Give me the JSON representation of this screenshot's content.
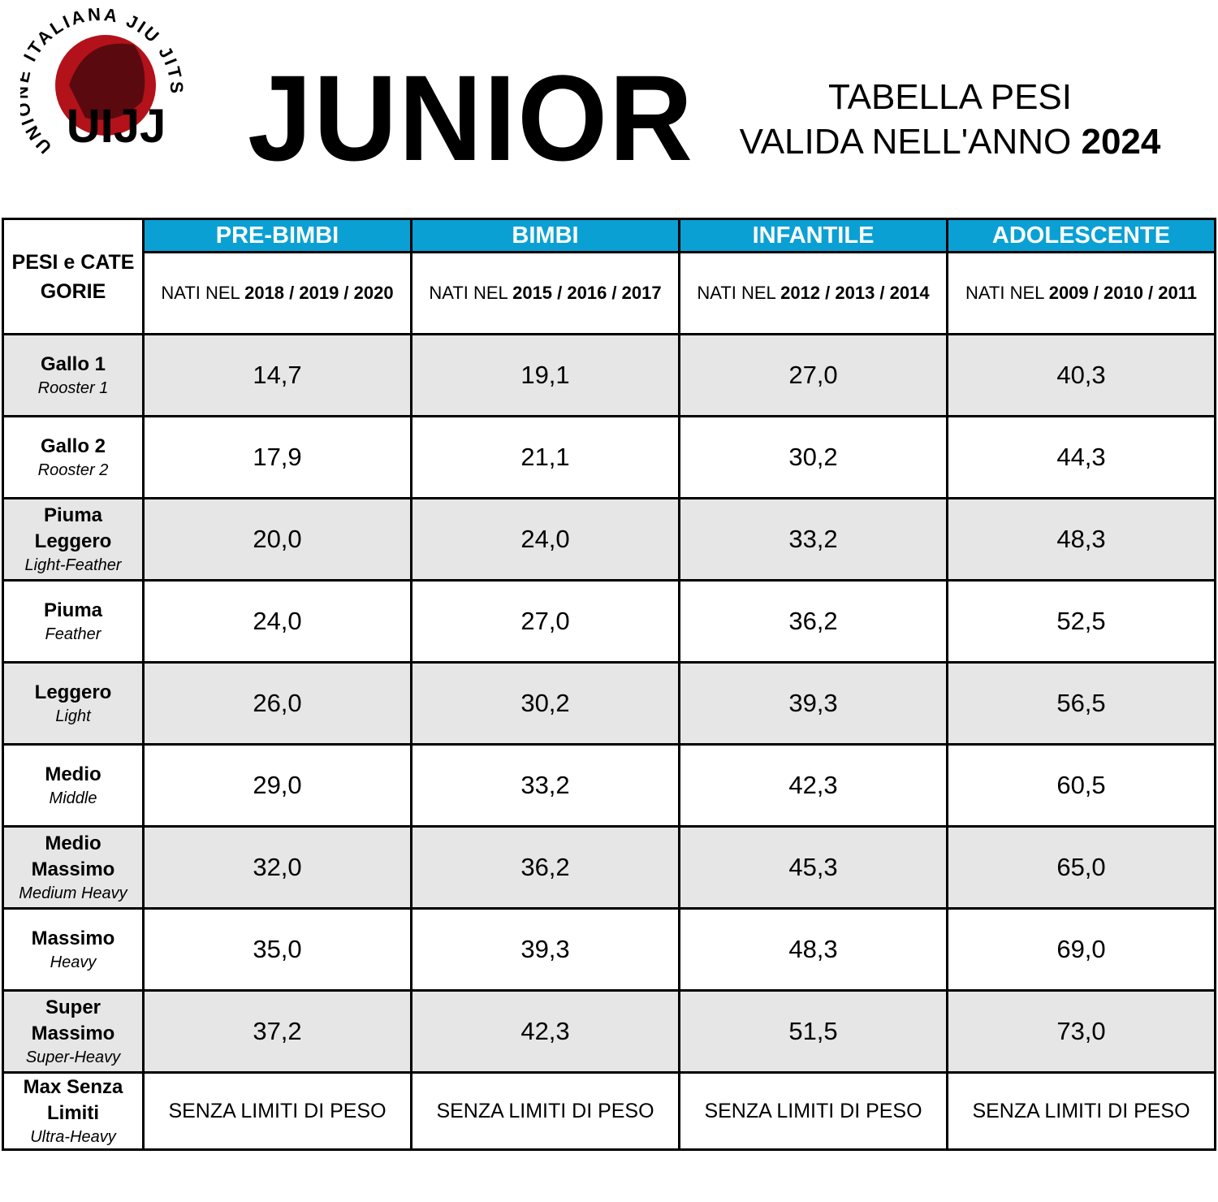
{
  "logo": {
    "ring_text": "UNIONE ITALIANA JIU JITSU",
    "letters": "UIJJ"
  },
  "header": {
    "title": "JUNIOR",
    "subtitle_line1": "TABELLA PESI",
    "subtitle_line2": "VALIDA NELL'ANNO",
    "year": "2024"
  },
  "table": {
    "corner": "PESI e CATEGORIE",
    "columns": [
      {
        "name": "PRE-BIMBI",
        "born_prefix": "NATI NEL",
        "born_years": "2018 / 2019 / 2020"
      },
      {
        "name": "BIMBI",
        "born_prefix": "NATI NEL",
        "born_years": "2015 / 2016 / 2017"
      },
      {
        "name": "INFANTILE",
        "born_prefix": "NATI NEL",
        "born_years": "2012 / 2013 / 2014"
      },
      {
        "name": "ADOLESCENTE",
        "born_prefix": "NATI NEL",
        "born_years": "2009 / 2010 / 2011"
      }
    ],
    "rows": [
      {
        "name": "Gallo 1",
        "english": "Rooster 1",
        "cells": [
          "14,7",
          "19,1",
          "27,0",
          "40,3"
        ]
      },
      {
        "name": "Gallo 2",
        "english": "Rooster 2",
        "cells": [
          "17,9",
          "21,1",
          "30,2",
          "44,3"
        ]
      },
      {
        "name": "Piuma Leggero",
        "english": "Light-Feather",
        "cells": [
          "20,0",
          "24,0",
          "33,2",
          "48,3"
        ]
      },
      {
        "name": "Piuma",
        "english": "Feather",
        "cells": [
          "24,0",
          "27,0",
          "36,2",
          "52,5"
        ]
      },
      {
        "name": "Leggero",
        "english": "Light",
        "cells": [
          "26,0",
          "30,2",
          "39,3",
          "56,5"
        ]
      },
      {
        "name": "Medio",
        "english": "Middle",
        "cells": [
          "29,0",
          "33,2",
          "42,3",
          "60,5"
        ]
      },
      {
        "name": "Medio Massimo",
        "english": "Medium Heavy",
        "cells": [
          "32,0",
          "36,2",
          "45,3",
          "65,0"
        ]
      },
      {
        "name": "Massimo",
        "english": "Heavy",
        "cells": [
          "35,0",
          "39,3",
          "48,3",
          "69,0"
        ]
      },
      {
        "name": "Super Massimo",
        "english": "Super-Heavy",
        "cells": [
          "37,2",
          "42,3",
          "51,5",
          "73,0"
        ]
      },
      {
        "name": "Max Senza Limiti",
        "english": "Ultra-Heavy",
        "cells": [
          "SENZA LIMITI DI PESO",
          "SENZA LIMITI DI PESO",
          "SENZA LIMITI DI PESO",
          "SENZA LIMITI DI PESO"
        ]
      }
    ]
  }
}
